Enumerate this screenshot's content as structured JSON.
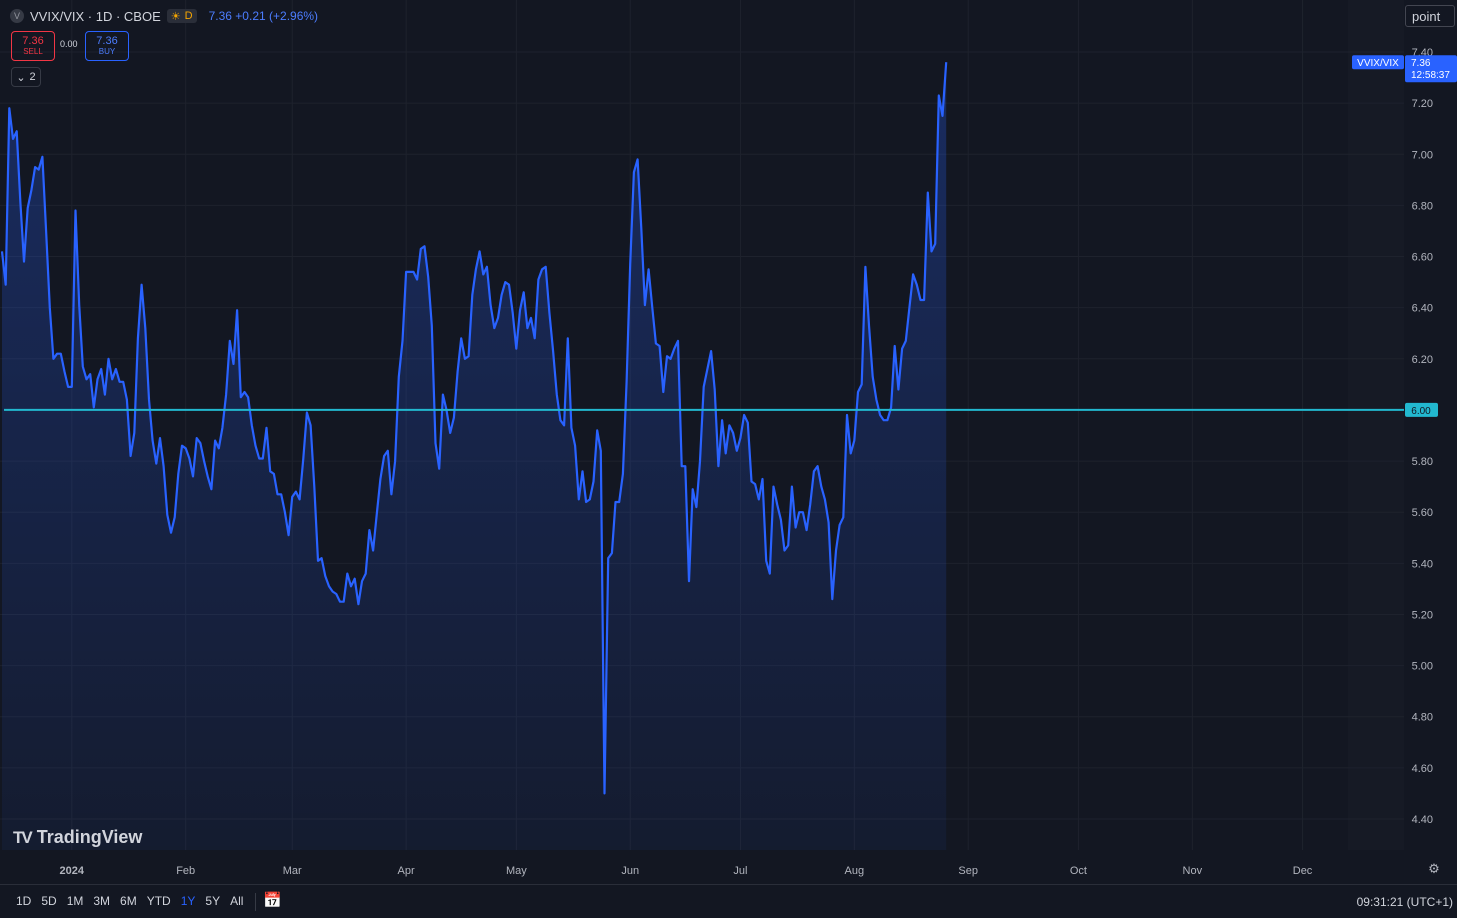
{
  "header": {
    "symbol_logo": "V",
    "title": "VVIX/VIX · 1D · CBOE",
    "status_letter": "D",
    "status_icon": "sun-icon",
    "last": "7.36",
    "change": "+0.21",
    "change_pct": "(+2.96%)"
  },
  "trade": {
    "sell_price": "7.36",
    "sell_label": "SELL",
    "spread": "0.00",
    "buy_price": "7.36",
    "buy_label": "BUY",
    "indicator_count": "2"
  },
  "scale_label": "point",
  "logo_text": "TradingView",
  "range_buttons": [
    "1D",
    "5D",
    "1M",
    "3M",
    "6M",
    "YTD",
    "1Y",
    "5Y",
    "All"
  ],
  "active_range": "1Y",
  "clock": "09:31:21 (UTC+1)",
  "colors": {
    "background": "#131722",
    "line": "#2962ff",
    "hline": "#22b8cf",
    "grid": "#1e222d",
    "text": "#b2b5be"
  },
  "chart_data": {
    "type": "area",
    "series": [
      {
        "name": "VVIX/VIX",
        "x_start": "2023-12-13",
        "x_step_days": 1,
        "values": [
          6.62,
          6.49,
          7.18,
          7.06,
          7.09,
          6.81,
          6.58,
          6.79,
          6.86,
          6.95,
          6.94,
          6.99,
          6.7,
          6.4,
          6.2,
          6.22,
          6.22,
          6.15,
          6.09,
          6.09,
          6.78,
          6.41,
          6.17,
          6.12,
          6.14,
          6.01,
          6.12,
          6.16,
          6.06,
          6.2,
          6.12,
          6.16,
          6.11,
          6.11,
          6.04,
          5.82,
          5.91,
          6.28,
          6.49,
          6.32,
          6.04,
          5.88,
          5.79,
          5.89,
          5.78,
          5.59,
          5.52,
          5.58,
          5.75,
          5.86,
          5.85,
          5.81,
          5.74,
          5.89,
          5.87,
          5.8,
          5.74,
          5.69,
          5.88,
          5.85,
          5.93,
          6.06,
          6.27,
          6.18,
          6.39,
          6.05,
          6.07,
          6.05,
          5.94,
          5.86,
          5.81,
          5.81,
          5.93,
          5.76,
          5.75,
          5.67,
          5.67,
          5.6,
          5.51,
          5.66,
          5.68,
          5.65,
          5.81,
          5.99,
          5.94,
          5.7,
          5.41,
          5.42,
          5.35,
          5.31,
          5.29,
          5.28,
          5.25,
          5.25,
          5.36,
          5.31,
          5.34,
          5.24,
          5.33,
          5.36,
          5.53,
          5.45,
          5.59,
          5.73,
          5.82,
          5.84,
          5.67,
          5.8,
          6.13,
          6.27,
          6.54,
          6.54,
          6.54,
          6.51,
          6.63,
          6.64,
          6.52,
          6.33,
          5.87,
          5.77,
          6.06,
          6.0,
          5.91,
          5.97,
          6.15,
          6.28,
          6.2,
          6.21,
          6.45,
          6.55,
          6.62,
          6.53,
          6.56,
          6.41,
          6.32,
          6.36,
          6.45,
          6.5,
          6.49,
          6.38,
          6.24,
          6.39,
          6.46,
          6.32,
          6.36,
          6.28,
          6.51,
          6.55,
          6.56,
          6.38,
          6.23,
          6.06,
          5.96,
          5.94,
          6.28,
          5.93,
          5.86,
          5.65,
          5.76,
          5.64,
          5.65,
          5.72,
          5.92,
          5.84,
          4.5,
          5.42,
          5.44,
          5.64,
          5.64,
          5.75,
          6.11,
          6.57,
          6.93,
          6.98,
          6.71,
          6.41,
          6.55,
          6.4,
          6.26,
          6.25,
          6.07,
          6.21,
          6.2,
          6.24,
          6.27,
          5.78,
          5.78,
          5.33,
          5.69,
          5.62,
          5.8,
          6.09,
          6.16,
          6.23,
          6.08,
          5.78,
          5.96,
          5.83,
          5.94,
          5.91,
          5.84,
          5.89,
          5.98,
          5.95,
          5.72,
          5.71,
          5.65,
          5.73,
          5.41,
          5.36,
          5.7,
          5.63,
          5.57,
          5.45,
          5.47,
          5.7,
          5.54,
          5.6,
          5.6,
          5.53,
          5.63,
          5.76,
          5.78,
          5.7,
          5.65,
          5.56,
          5.26,
          5.45,
          5.55,
          5.58,
          5.98,
          5.83,
          5.88,
          6.07,
          6.1,
          6.56,
          6.33,
          6.13,
          6.04,
          5.98,
          5.96,
          5.96,
          6.01,
          6.25,
          6.08,
          6.24,
          6.27,
          6.4,
          6.53,
          6.49,
          6.43,
          6.43,
          6.85,
          6.62,
          6.65,
          7.23,
          7.15,
          7.36
        ]
      }
    ],
    "hline": {
      "value": 6.0,
      "label": "6.00"
    },
    "last_label": {
      "symbol": "VVIX/VIX",
      "value": "7.36",
      "countdown": "12:58:37"
    },
    "y_ticks": [
      "7.40",
      "7.20",
      "7.00",
      "6.80",
      "6.60",
      "6.40",
      "6.20",
      "5.80",
      "5.60",
      "5.40",
      "5.20",
      "5.00",
      "4.80",
      "4.60",
      "4.40"
    ],
    "ylim": [
      4.3,
      7.5
    ],
    "x_ticks": [
      {
        "label": "2024",
        "date": "2024-01-01"
      },
      {
        "label": "Feb",
        "date": "2024-02-01"
      },
      {
        "label": "Mar",
        "date": "2024-03-01"
      },
      {
        "label": "Apr",
        "date": "2024-04-01"
      },
      {
        "label": "May",
        "date": "2024-05-01"
      },
      {
        "label": "Jun",
        "date": "2024-06-01"
      },
      {
        "label": "Jul",
        "date": "2024-07-01"
      },
      {
        "label": "Aug",
        "date": "2024-08-01"
      },
      {
        "label": "Sep",
        "date": "2024-09-01"
      },
      {
        "label": "Oct",
        "date": "2024-10-01"
      },
      {
        "label": "Nov",
        "date": "2024-11-01"
      },
      {
        "label": "Dec",
        "date": "2024-12-01"
      }
    ],
    "xlim": [
      "2023-12-13",
      "2024-12-18"
    ],
    "grid": true
  }
}
